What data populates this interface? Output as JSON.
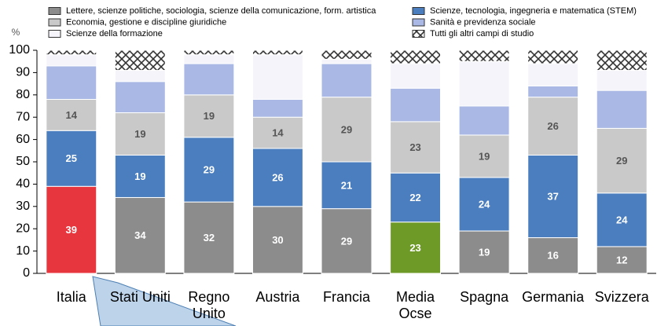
{
  "chart_data": {
    "type": "stacked_bar",
    "y_axis_label": "%",
    "categories": [
      "Italia",
      "Stati Uniti",
      "Regno\nUnito",
      "Austria",
      "Francia",
      "Media\nOcse",
      "Spagna",
      "Germania",
      "Svizzera"
    ],
    "series": [
      {
        "name": "Lettere, scienze politiche, sociologia, scienze della comunicazione, form. artistica",
        "color": "#8c8c8c",
        "point_colors": [
          "#e8363f",
          "#8c8c8c",
          "#8c8c8c",
          "#8c8c8c",
          "#8c8c8c",
          "#6e9a28",
          "#8c8c8c",
          "#8c8c8c",
          "#8c8c8c"
        ],
        "label_color": "#ffffff",
        "show_labels": true,
        "values": [
          39,
          34,
          32,
          30,
          29,
          23,
          19,
          16,
          12
        ]
      },
      {
        "name": "Scienze, tecnologia, ingegneria e matematica (STEM)",
        "color": "#4a7ebf",
        "label_color": "#ffffff",
        "show_labels": true,
        "values": [
          25,
          19,
          29,
          26,
          21,
          22,
          24,
          37,
          24
        ]
      },
      {
        "name": "Economia, gestione e discipline giuridiche",
        "color": "#c9c9c9",
        "label_color": "#555555",
        "show_labels": true,
        "values": [
          14,
          19,
          19,
          14,
          29,
          23,
          19,
          26,
          29
        ]
      },
      {
        "name": "Sanità e previdenza sociale",
        "color": "#a9b8e4",
        "show_labels": false,
        "values": [
          15,
          14,
          14,
          8,
          15,
          15,
          13,
          5,
          17
        ]
      },
      {
        "name": "Scienze della formazione",
        "color": "#f4f4fa",
        "show_labels": false,
        "values": [
          5,
          5,
          4,
          20,
          2,
          11,
          20,
          10,
          9
        ]
      },
      {
        "name": "Tutti gli altri campi di studio",
        "color": "#ffffff",
        "hatch": true,
        "show_labels": false,
        "values": [
          2,
          9,
          2,
          2,
          4,
          6,
          5,
          6,
          9
        ]
      }
    ],
    "ylim": [
      0,
      100
    ],
    "yticks": [
      0,
      10,
      20,
      30,
      40,
      50,
      60,
      70,
      80,
      90,
      100
    ],
    "grid": false,
    "legend": "top"
  }
}
